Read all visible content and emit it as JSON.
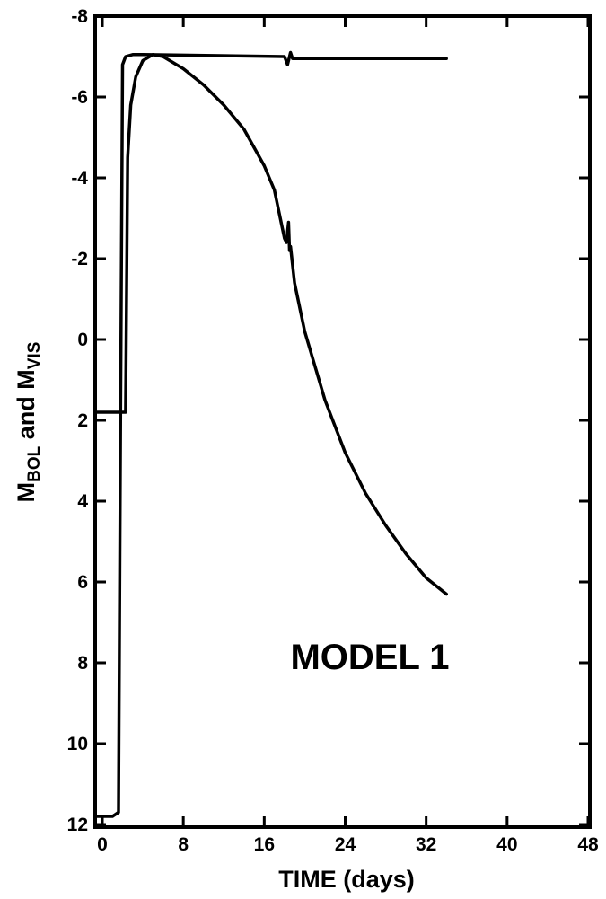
{
  "chart_data": {
    "type": "line",
    "title": "",
    "xlabel": "TIME (days)",
    "ylabel": {
      "main1": "M",
      "sub1": "BOL",
      "mid": " and ",
      "main2": "M",
      "sub2": "VIS"
    },
    "annotation": "MODEL 1",
    "xlim": [
      0,
      48
    ],
    "ylim": [
      12,
      -8
    ],
    "y_inverted": true,
    "grid": false,
    "xticks": [
      0,
      8,
      16,
      24,
      32,
      40,
      48
    ],
    "xtick_labels": [
      "0",
      "8",
      "16",
      "24",
      "32",
      "40",
      "48"
    ],
    "yticks": [
      -8,
      -6,
      -4,
      -2,
      0,
      2,
      4,
      6,
      8,
      10,
      12
    ],
    "ytick_labels": [
      "-8",
      "-6",
      "-4",
      "-2",
      "0",
      "2",
      "4",
      "6",
      "8",
      "10",
      "12"
    ],
    "series": [
      {
        "x": [
          -0.5,
          0,
          1,
          1.6,
          1.8,
          2.0,
          2.3,
          3,
          4,
          18,
          18.3,
          18.6,
          18.8,
          34
        ],
        "y": [
          11.8,
          11.8,
          11.8,
          11.7,
          1.8,
          -6.8,
          -7.0,
          -7.05,
          -7.05,
          -7.0,
          -6.8,
          -7.1,
          -6.95,
          -6.95
        ]
      },
      {
        "x": [
          -0.5,
          0,
          1,
          2.3,
          2.5,
          2.8,
          3.3,
          4,
          5,
          6,
          8,
          10,
          12,
          14,
          16,
          17,
          18.0,
          18.2,
          18.4,
          18.5,
          18.6,
          19,
          20,
          22,
          24,
          26,
          28,
          30,
          32,
          34
        ],
        "y": [
          1.8,
          1.8,
          1.8,
          1.8,
          -4.5,
          -5.8,
          -6.5,
          -6.9,
          -7.05,
          -7.0,
          -6.7,
          -6.3,
          -5.8,
          -5.2,
          -4.3,
          -3.7,
          -2.5,
          -2.4,
          -2.9,
          -2.2,
          -2.3,
          -1.4,
          -0.2,
          1.5,
          2.8,
          3.8,
          4.6,
          5.3,
          5.9,
          6.3
        ]
      }
    ]
  }
}
